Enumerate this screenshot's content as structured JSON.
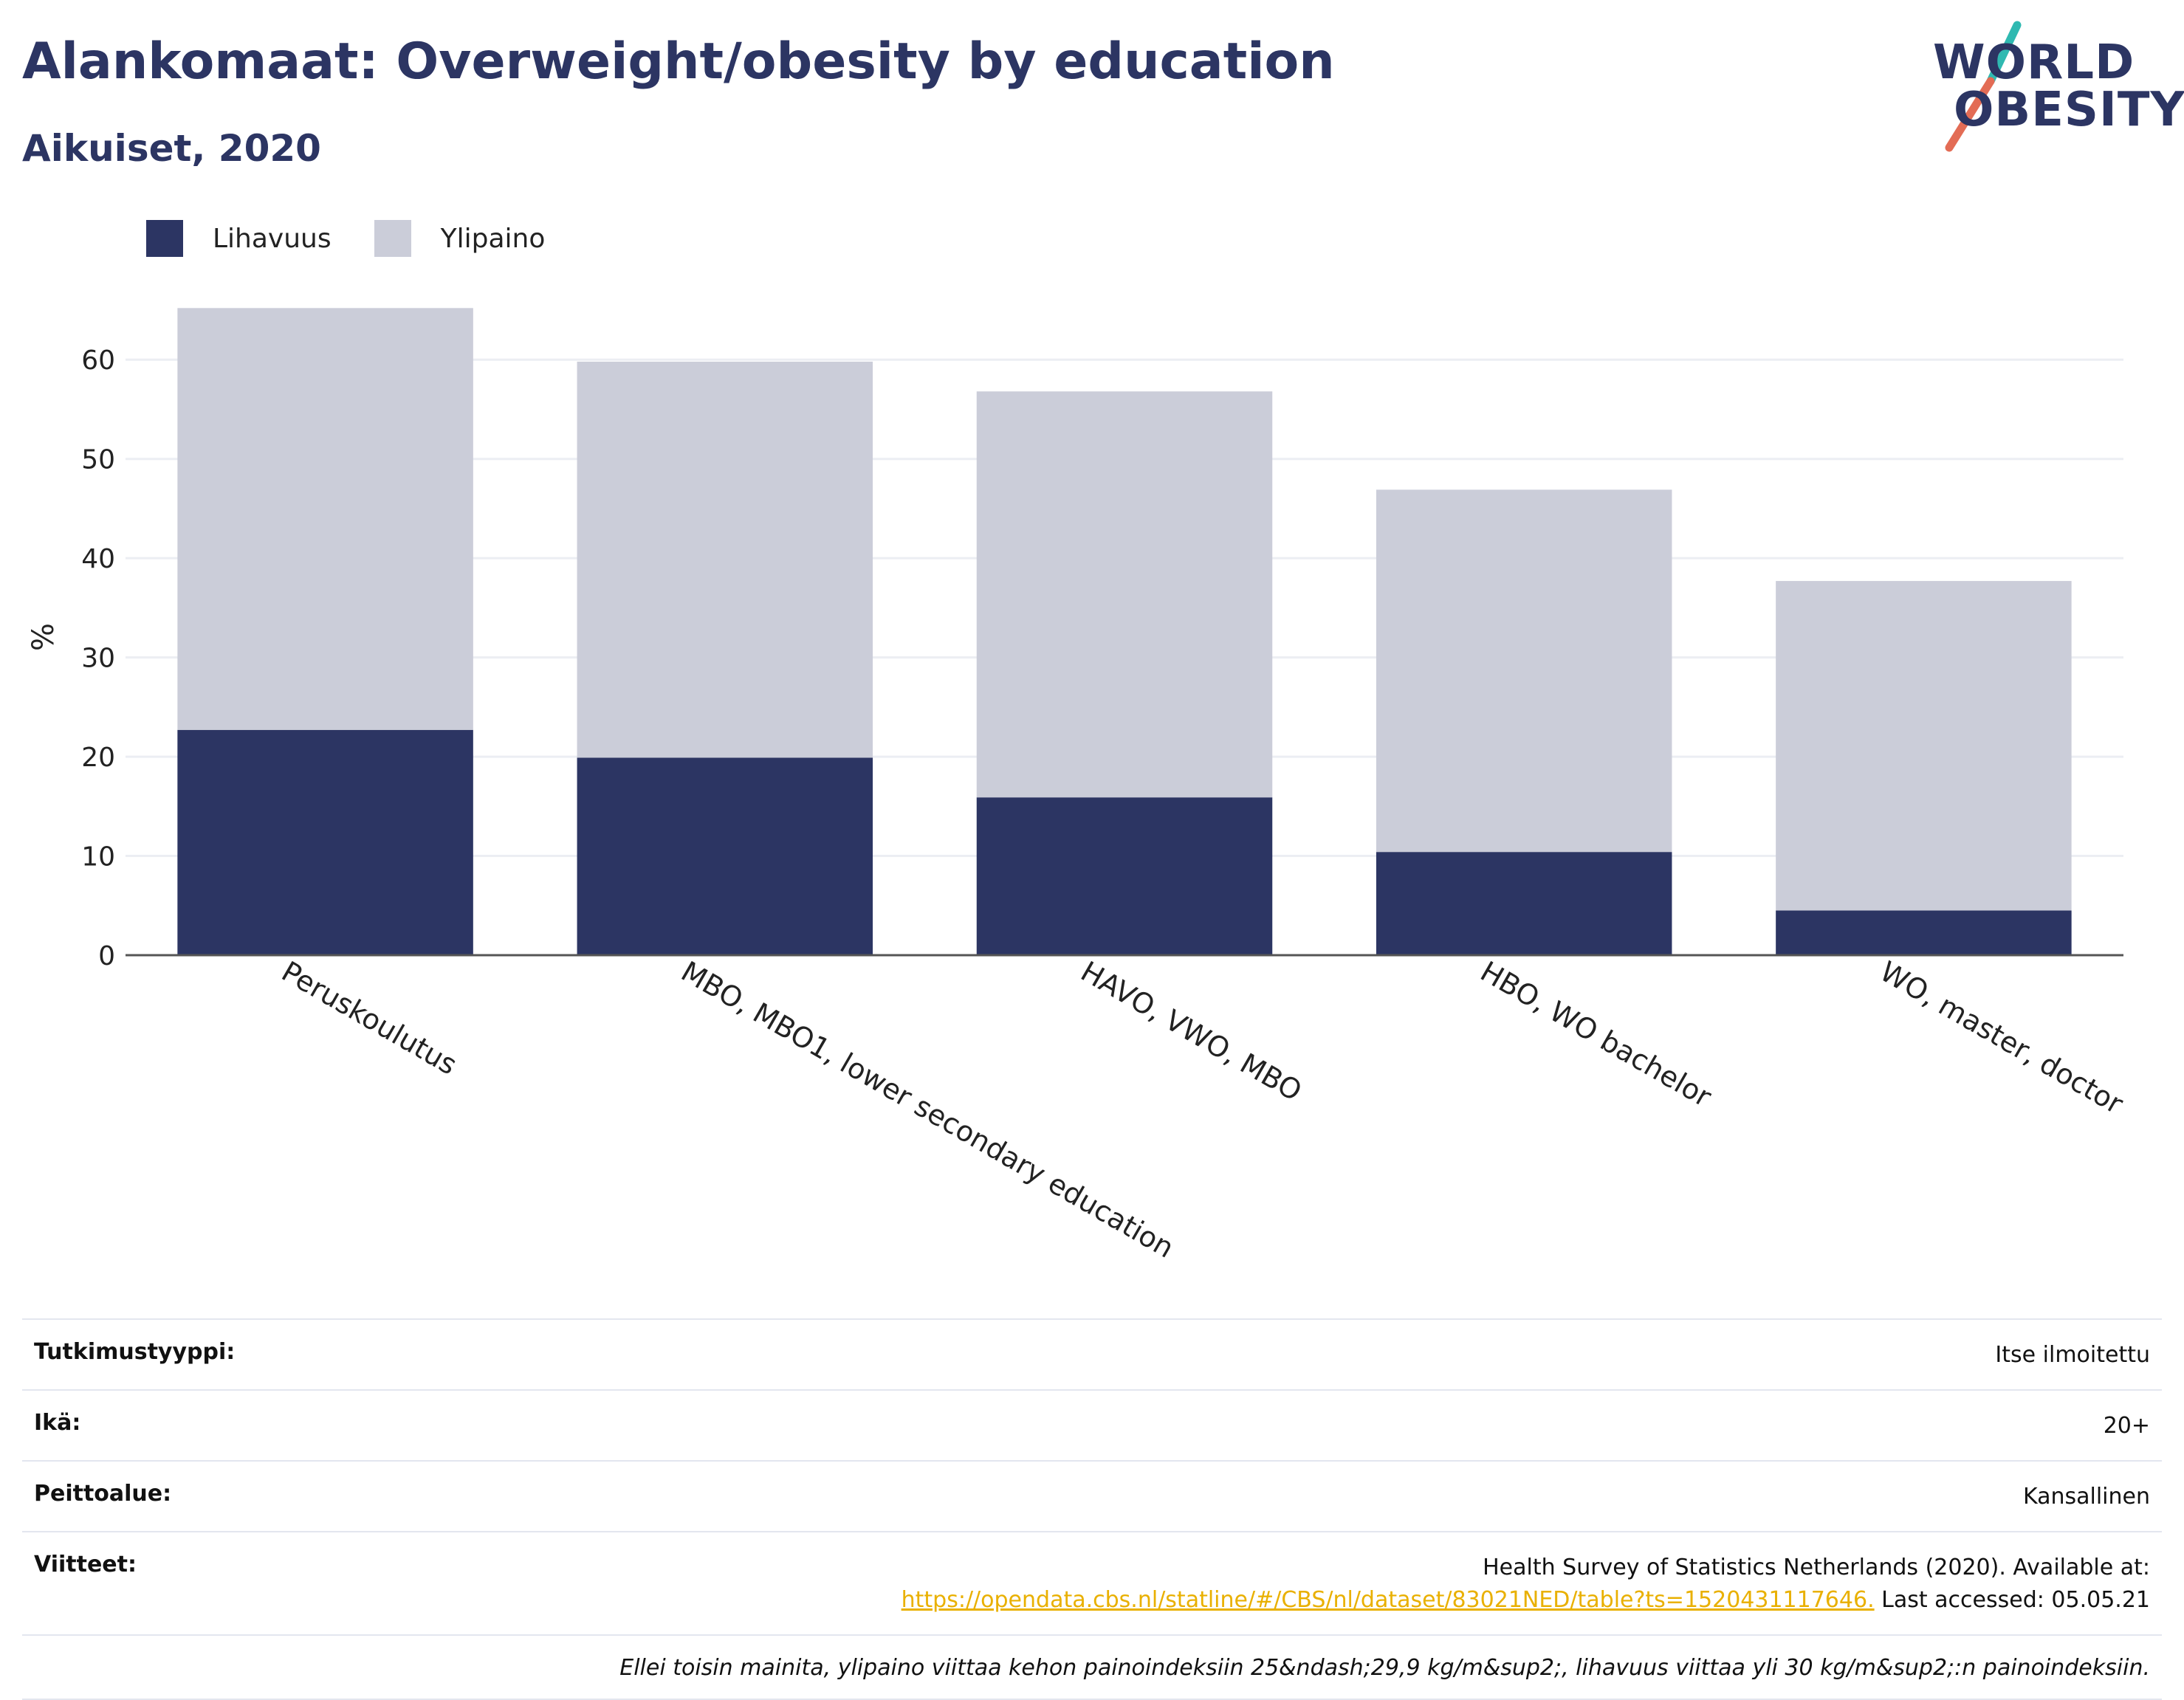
{
  "title": "Alankomaat: Overweight/obesity by education",
  "subtitle": "Aikuiset, 2020",
  "logo": {
    "line1": "WORLD",
    "line2": "OBESITY",
    "accent_teal": "#2fb9b1",
    "accent_red": "#e36c55"
  },
  "legend": [
    {
      "name": "Lihavuus",
      "color": "#2c3563"
    },
    {
      "name": "Ylipaino",
      "color": "#cbcdd9"
    }
  ],
  "chart_data": {
    "type": "bar",
    "stacked": true,
    "categories": [
      "Peruskoulutus",
      "MBO, MBO1, lower secondary education",
      "HAVO, VWO, MBO",
      "HBO, WO bachelor",
      "WO, master, doctor"
    ],
    "series": [
      {
        "name": "Lihavuus",
        "color": "#2c3563",
        "values": [
          22.7,
          19.9,
          15.9,
          10.4,
          4.5
        ]
      },
      {
        "name": "Ylipaino",
        "color": "#cbcdd9",
        "values": [
          42.5,
          39.9,
          40.9,
          36.5,
          33.2
        ]
      }
    ],
    "ylabel": "%",
    "xlabel": "",
    "ylim": [
      0,
      65
    ],
    "yticks": [
      0,
      10,
      20,
      30,
      40,
      50,
      60
    ],
    "grid": true,
    "legend_position": "top-left"
  },
  "info": {
    "rows": [
      {
        "key": "Tutkimustyyppi:",
        "value": "Itse ilmoitettu"
      },
      {
        "key": "Ikä:",
        "value": "20+"
      },
      {
        "key": "Peittoalue:",
        "value": "Kansallinen"
      }
    ],
    "references_key": "Viitteet:",
    "references_text": "Health Survey of Statistics Netherlands (2020). Available at:",
    "references_link": "https://opendata.cbs.nl/statline/#/CBS/nl/dataset/83021NED/table?ts=1520431117646.",
    "references_suffix": " Last accessed: 05.05.21",
    "note": "Ellei toisin mainita, ylipaino viittaa kehon painoindeksiin 25&ndash;29,9 kg/m&sup2;, lihavuus viittaa yli 30 kg/m&sup2;:n painoindeksiin."
  }
}
